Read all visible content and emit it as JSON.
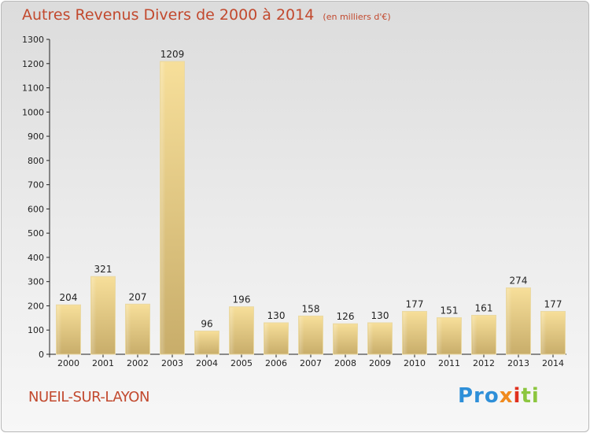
{
  "chart_data": {
    "type": "bar",
    "title": "Autres Revenus Divers de 2000 à 2014",
    "subtitle": "(en milliers d'€)",
    "categories": [
      "2000",
      "2001",
      "2002",
      "2003",
      "2004",
      "2005",
      "2006",
      "2007",
      "2008",
      "2009",
      "2010",
      "2011",
      "2012",
      "2013",
      "2014"
    ],
    "values": [
      204,
      321,
      207,
      1209,
      96,
      196,
      130,
      158,
      126,
      130,
      177,
      151,
      161,
      274,
      177
    ],
    "ylim": [
      0,
      1300
    ],
    "yticks": [
      0,
      100,
      200,
      300,
      400,
      500,
      600,
      700,
      800,
      900,
      1000,
      1100,
      1200,
      1300
    ],
    "grid": false,
    "bar_color": "#e8cf86"
  },
  "footer": {
    "commune": "NUEIL-SUR-LAYON",
    "logo_parts": [
      "Pro",
      "x",
      "i",
      "ti"
    ]
  }
}
